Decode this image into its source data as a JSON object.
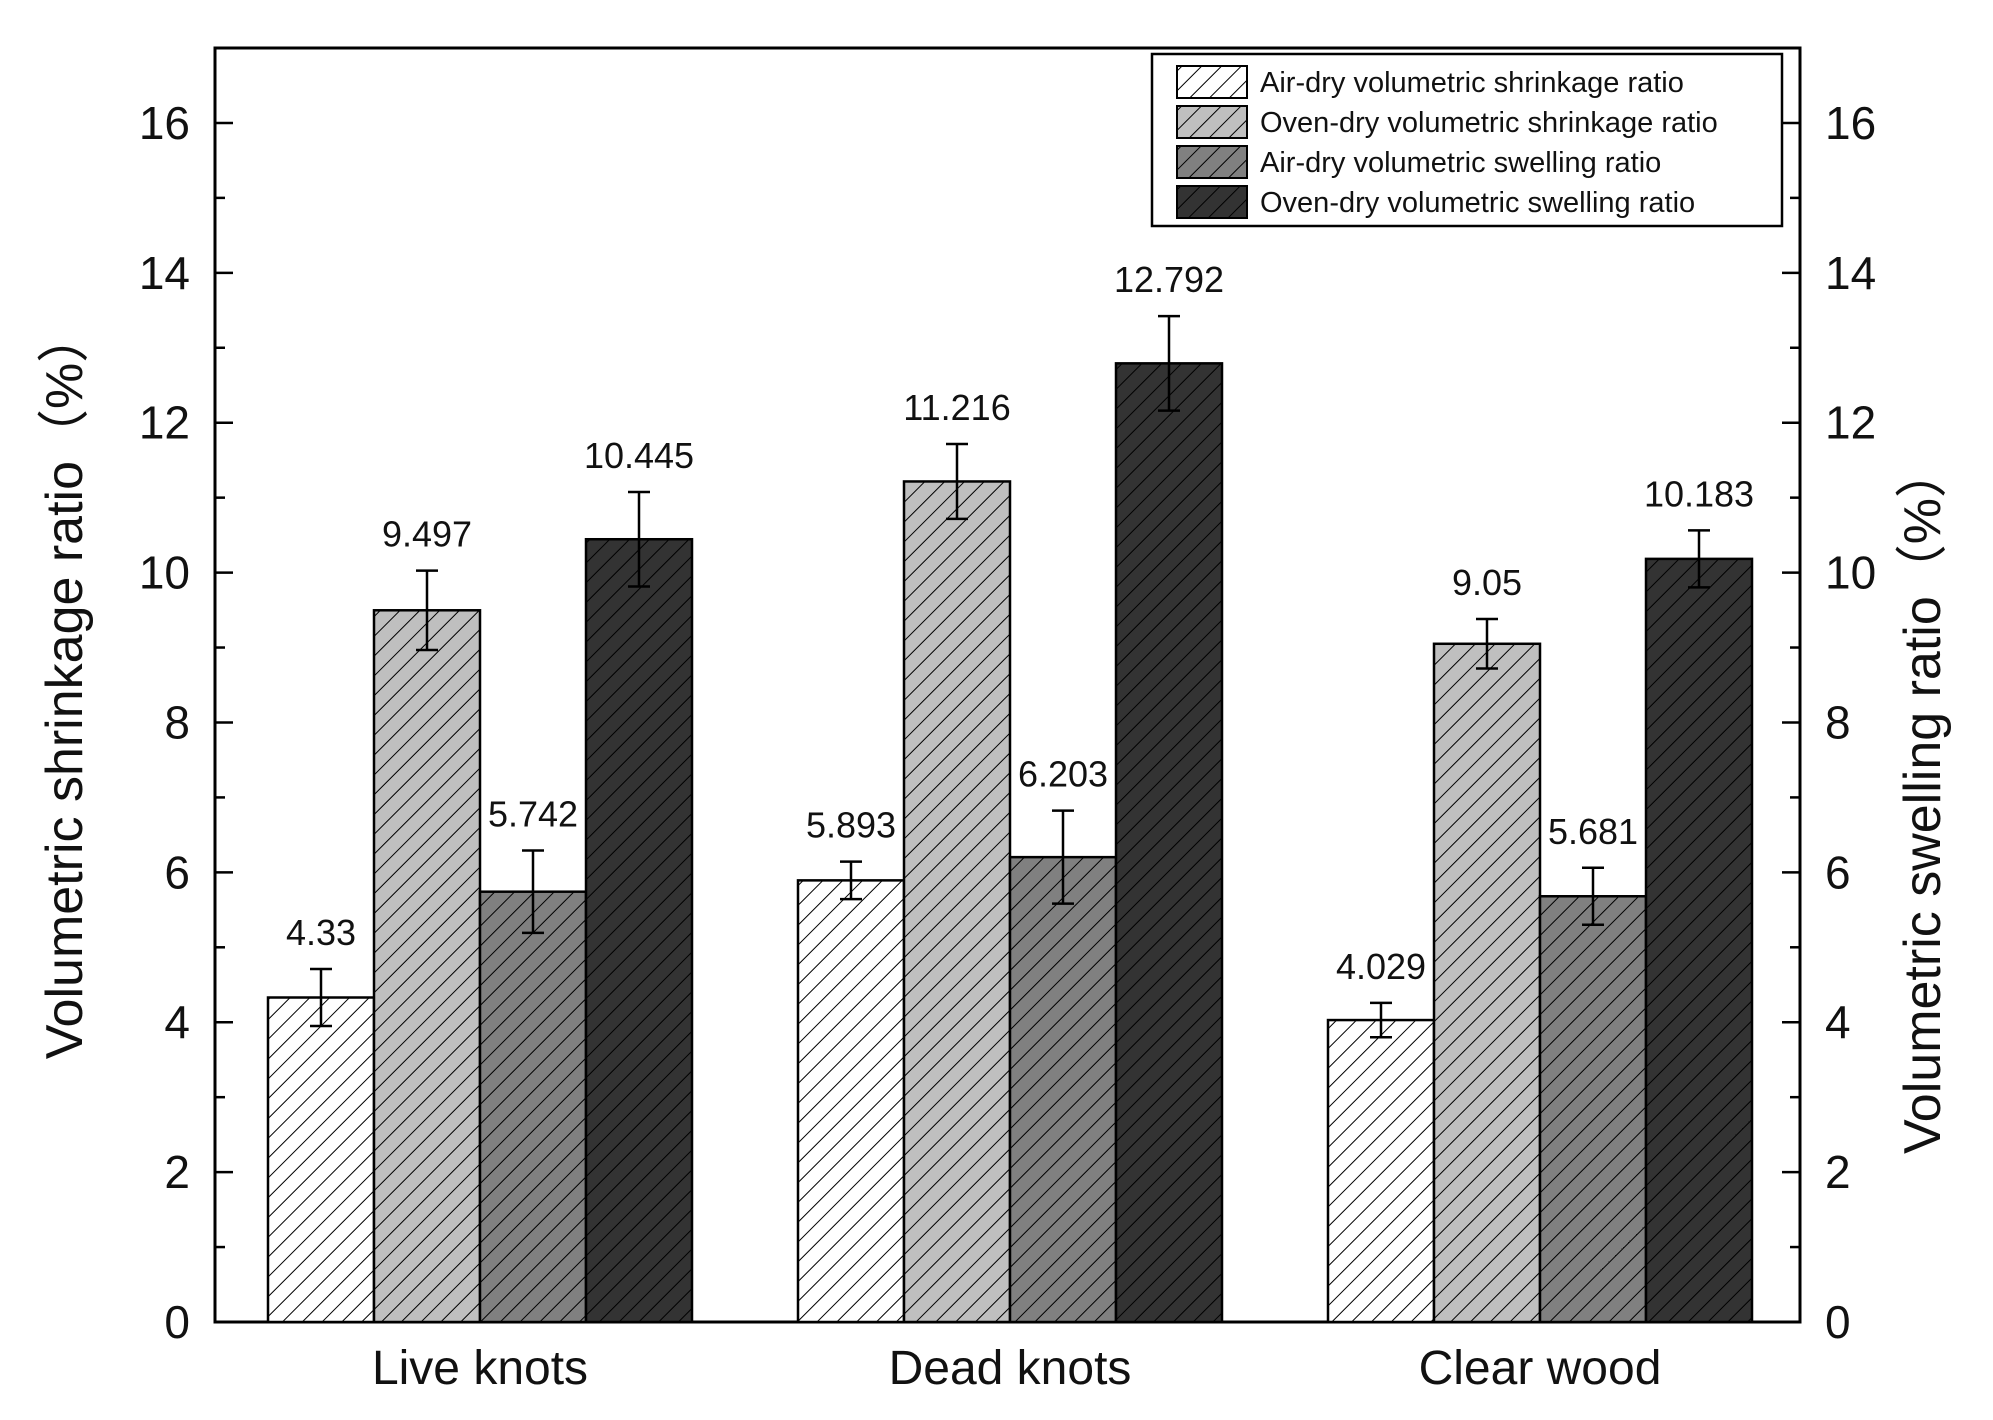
{
  "chart_data": {
    "type": "bar",
    "categories": [
      "Live knots",
      "Dead knots",
      "Clear wood"
    ],
    "series": [
      {
        "name": "Air-dry volumetric shrinkage ratio",
        "axis": "left",
        "fill": "#ffffff",
        "values": [
          4.33,
          5.893,
          4.029
        ],
        "errors": [
          0.38,
          0.25,
          0.23
        ],
        "labels": [
          "4.33",
          "5.893",
          "4.029"
        ]
      },
      {
        "name": "Oven-dry volumetric shrinkage ratio",
        "axis": "left",
        "fill": "#bfbfbf",
        "values": [
          9.497,
          11.216,
          9.05
        ],
        "errors": [
          0.53,
          0.5,
          0.33
        ],
        "labels": [
          "9.497",
          "11.216",
          "9.05"
        ]
      },
      {
        "name": "Air-dry volumetric swelling ratio",
        "axis": "right",
        "fill": "#808080",
        "values": [
          5.742,
          6.203,
          5.681
        ],
        "errors": [
          0.55,
          0.62,
          0.38
        ],
        "labels": [
          "5.742",
          "6.203",
          "5.681"
        ]
      },
      {
        "name": "Oven-dry volumetric swelling ratio",
        "axis": "right",
        "fill": "#333333",
        "values": [
          10.445,
          12.792,
          10.183
        ],
        "errors": [
          0.63,
          0.63,
          0.38
        ],
        "labels": [
          "10.445",
          "12.792",
          "10.183"
        ]
      }
    ],
    "ylabel": "Volumetric shrinkage ratio（%）",
    "y2label": "Volumetric swelling ratio（%）",
    "ylim": [
      0,
      17
    ],
    "y2lim": [
      0,
      17
    ],
    "yticks": [
      0,
      2,
      4,
      6,
      8,
      10,
      12,
      14,
      16
    ],
    "y2ticks": [
      0,
      2,
      4,
      6,
      8,
      10,
      12,
      14,
      16
    ],
    "grid": false,
    "legend_position": "top-right",
    "pattern": "diagonal-hatch",
    "colors": {
      "outline": "#000000",
      "hatch": "#000000",
      "background": "#ffffff"
    }
  }
}
